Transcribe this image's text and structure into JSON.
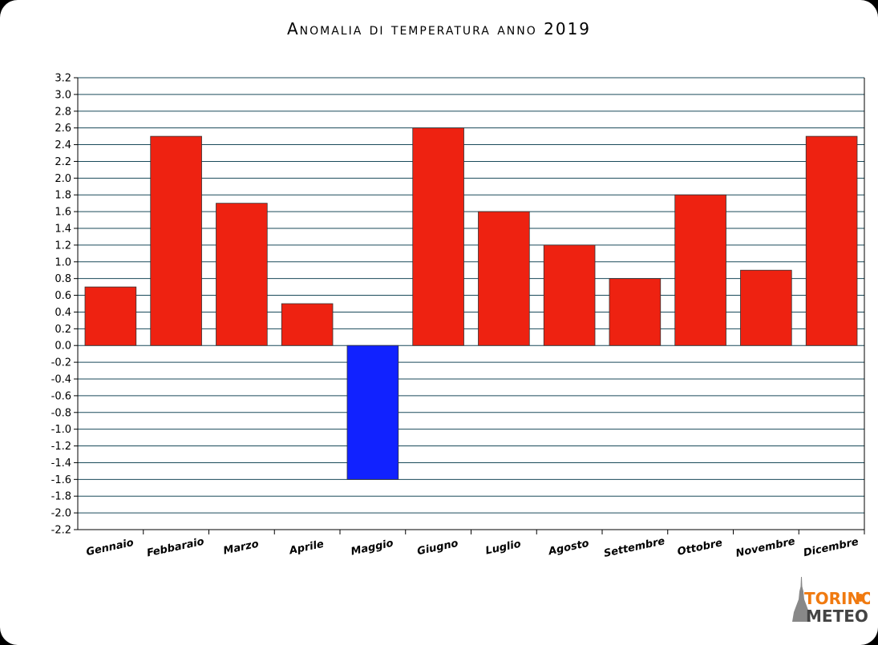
{
  "chart_data": {
    "type": "bar",
    "title": "Anomalia di temperatura anno 2019",
    "xlabel": "",
    "ylabel": "",
    "ylim": [
      -2.2,
      3.2
    ],
    "y_ticks": [
      "3.2",
      "3.0",
      "2.8",
      "2.6",
      "2.4",
      "2.2",
      "2.0",
      "1.8",
      "1.6",
      "1.4",
      "1.2",
      "1.0",
      "0.8",
      "0.6",
      "0.4",
      "0.2",
      "0.0",
      "-0.2",
      "-0.4",
      "-0.6",
      "-0.8",
      "-1.0",
      "-1.2",
      "-1.4",
      "-1.6",
      "-1.8",
      "-2.0",
      "-2.2"
    ],
    "categories": [
      "Gennaio",
      "Febbaraio",
      "Marzo",
      "Aprile",
      "Maggio",
      "Giugno",
      "Luglio",
      "Agosto",
      "Settembre",
      "Ottobre",
      "Novembre",
      "Dicembre"
    ],
    "values": [
      0.7,
      2.5,
      1.7,
      0.5,
      -1.6,
      2.6,
      1.6,
      1.2,
      0.8,
      1.8,
      0.9,
      2.5
    ],
    "grid": true,
    "colors": {
      "positive": "#ee2211",
      "negative": "#1122ff",
      "grid": "#1a4a5a"
    }
  },
  "logo": {
    "line1": "TORINO",
    "line2": "METEO",
    "color1": "#f07a10",
    "color2": "#444444"
  }
}
